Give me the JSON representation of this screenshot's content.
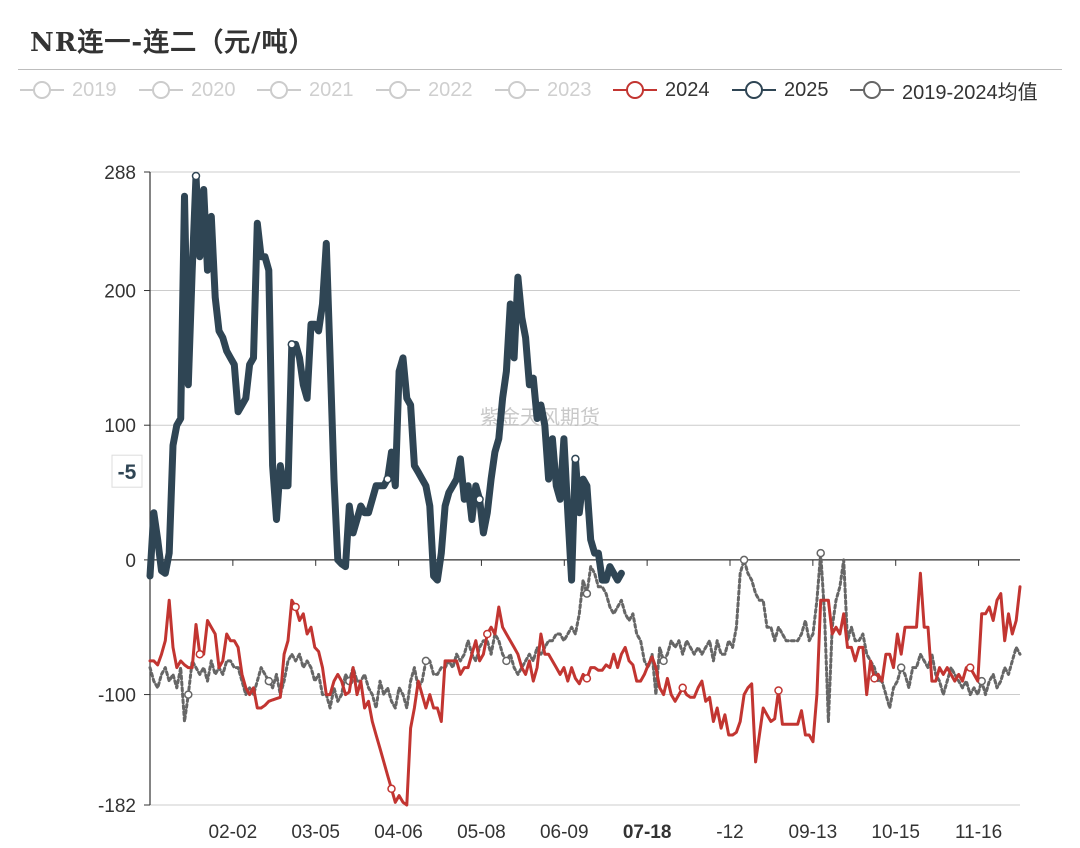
{
  "page_title": "NR连一-连二（元/吨）",
  "watermark": "紫金天风期货",
  "legend": [
    {
      "label": "2019",
      "color": "#cccccc",
      "active": false
    },
    {
      "label": "2020",
      "color": "#cccccc",
      "active": false
    },
    {
      "label": "2021",
      "color": "#cccccc",
      "active": false
    },
    {
      "label": "2022",
      "color": "#cccccc",
      "active": false
    },
    {
      "label": "2023",
      "color": "#cccccc",
      "active": false
    },
    {
      "label": "2024",
      "color": "#c23531",
      "active": true
    },
    {
      "label": "2025",
      "color": "#2f4554",
      "active": true
    },
    {
      "label": "2019-2024均值",
      "color": "#666666",
      "active": true
    }
  ],
  "chart_data": {
    "type": "line",
    "title": "NR连一-连二（元/吨）",
    "xlabel": "",
    "ylabel": "",
    "x_ticks": [
      "02-02",
      "03-05",
      "04-06",
      "05-08",
      "06-09",
      "07-18",
      "-12",
      "09-13",
      "10-15",
      "11-16"
    ],
    "x_highlight": "07-18",
    "y_ticks": [
      288,
      200,
      100,
      0,
      -100,
      -182
    ],
    "ylim": [
      -182,
      288
    ],
    "pointer_label": "-5",
    "pointer_value": 100,
    "grid": true,
    "series": [
      {
        "name": "2024",
        "color": "#c23531",
        "values": [
          -75,
          -75,
          -78,
          -70,
          -60,
          -30,
          -65,
          -80,
          -75,
          -78,
          -80,
          -80,
          -48,
          -70,
          -70,
          -45,
          -50,
          -55,
          -80,
          -75,
          -55,
          -60,
          -60,
          -65,
          -85,
          -95,
          -100,
          -95,
          -110,
          -110,
          -108,
          -105,
          -104,
          -103,
          -102,
          -70,
          -60,
          -30,
          -35,
          -45,
          -40,
          -55,
          -50,
          -65,
          -68,
          -80,
          -100,
          -100,
          -90,
          -85,
          -90,
          -100,
          -98,
          -80,
          -100,
          -90,
          -110,
          -105,
          -120,
          -130,
          -140,
          -150,
          -160,
          -170,
          -180,
          -175,
          -180,
          -182,
          -125,
          -110,
          -90,
          -100,
          -110,
          -100,
          -110,
          -110,
          -120,
          -75,
          -75,
          -75,
          -75,
          -85,
          -80,
          -80,
          -70,
          -60,
          -75,
          -70,
          -55,
          -50,
          -55,
          -35,
          -50,
          -55,
          -60,
          -65,
          -70,
          -80,
          -85,
          -75,
          -90,
          -80,
          -55,
          -70,
          -70,
          -75,
          -80,
          -85,
          -80,
          -90,
          -80,
          -88,
          -92,
          -85,
          -88,
          -80,
          -80,
          -82,
          -82,
          -78,
          -80,
          -70,
          -80,
          -70,
          -65,
          -75,
          -78,
          -90,
          -90,
          -85,
          -78,
          -72,
          -80,
          -95,
          -100,
          -88,
          -100,
          -105,
          -100,
          -95,
          -100,
          -102,
          -102,
          -95,
          -90,
          -105,
          -102,
          -120,
          -110,
          -125,
          -115,
          -130,
          -130,
          -128,
          -120,
          -100,
          -95,
          -92,
          -150,
          -130,
          -110,
          -115,
          -120,
          -118,
          -97,
          -122,
          -122,
          -122,
          -122,
          -122,
          -112,
          -130,
          -130,
          -135,
          -100,
          -30,
          -30,
          -30,
          -55,
          -50,
          -55,
          -40,
          -65,
          -65,
          -75,
          -65,
          -65,
          -100,
          -75,
          -88,
          -85,
          -90,
          -70,
          -70,
          -80,
          -55,
          -70,
          -50,
          -50,
          -50,
          -50,
          -10,
          -50,
          -50,
          -90,
          -90,
          -80,
          -85,
          -80,
          -85,
          -90,
          -85,
          -90,
          -80,
          -80,
          -85,
          -90,
          -40,
          -40,
          -35,
          -45,
          -30,
          -25,
          -60,
          -40,
          -55,
          -45,
          -20
        ]
      },
      {
        "name": "2025",
        "color": "#2f4554",
        "values": [
          -12,
          35,
          15,
          -8,
          -10,
          5,
          85,
          100,
          105,
          270,
          130,
          215,
          285,
          225,
          275,
          215,
          255,
          195,
          170,
          165,
          155,
          150,
          145,
          110,
          115,
          120,
          145,
          150,
          250,
          225,
          225,
          215,
          70,
          30,
          70,
          55,
          55,
          160,
          160,
          150,
          130,
          120,
          175,
          175,
          170,
          190,
          235,
          150,
          60,
          0,
          -3,
          -5,
          40,
          20,
          30,
          40,
          35,
          35,
          45,
          55,
          55,
          55,
          60,
          80,
          55,
          140,
          150,
          120,
          115,
          70,
          65,
          60,
          55,
          40,
          -12,
          -15,
          5,
          40,
          50,
          55,
          60,
          75,
          45,
          55,
          30,
          55,
          45,
          20,
          35,
          60,
          80,
          90,
          120,
          140,
          190,
          150,
          210,
          180,
          165,
          130,
          135,
          105,
          115,
          100,
          60,
          90,
          55,
          45,
          90,
          35,
          -15,
          75,
          35,
          60,
          55,
          15,
          5,
          5,
          -15,
          -15,
          -5,
          -10,
          -15,
          -10
        ]
      },
      {
        "name": "2019-2024均值",
        "color": "#666666",
        "values": [
          -80,
          -90,
          -95,
          -85,
          -80,
          -90,
          -85,
          -95,
          -80,
          -120,
          -100,
          -75,
          -80,
          -85,
          -80,
          -90,
          -75,
          -85,
          -80,
          -85,
          -75,
          -75,
          -80,
          -80,
          -90,
          -100,
          -95,
          -100,
          -90,
          -80,
          -85,
          -90,
          -95,
          -85,
          -100,
          -90,
          -75,
          -70,
          -75,
          -70,
          -80,
          -75,
          -80,
          -90,
          -85,
          -100,
          -100,
          -110,
          -95,
          -105,
          -100,
          -85,
          -90,
          -80,
          -90,
          -90,
          -85,
          -95,
          -100,
          -110,
          -90,
          -100,
          -95,
          -105,
          -110,
          -95,
          -100,
          -110,
          -90,
          -80,
          -95,
          -90,
          -75,
          -75,
          -85,
          -85,
          -80,
          -80,
          -75,
          -80,
          -70,
          -75,
          -70,
          -60,
          -70,
          -75,
          -65,
          -60,
          -60,
          -70,
          -55,
          -60,
          -70,
          -75,
          -70,
          -80,
          -85,
          -80,
          -75,
          -70,
          -75,
          -65,
          -70,
          -65,
          -60,
          -60,
          -55,
          -55,
          -60,
          -55,
          -50,
          -55,
          -40,
          -15,
          -25,
          -5,
          -10,
          -20,
          -20,
          -25,
          -35,
          -40,
          -35,
          -30,
          -40,
          -45,
          -40,
          -55,
          -60,
          -75,
          -80,
          -70,
          -100,
          -65,
          -75,
          -70,
          -60,
          -65,
          -60,
          -70,
          -60,
          -65,
          -70,
          -65,
          -70,
          -65,
          -60,
          -75,
          -60,
          -70,
          -70,
          -60,
          -65,
          -50,
          -10,
          0,
          -10,
          -15,
          -25,
          -30,
          -30,
          -50,
          -50,
          -60,
          -50,
          -55,
          -60,
          -60,
          -60,
          -60,
          -55,
          -45,
          -60,
          -55,
          -30,
          5,
          -40,
          -120,
          -50,
          -30,
          -20,
          0,
          -60,
          -50,
          -60,
          -60,
          -55,
          -70,
          -75,
          -80,
          -90,
          -90,
          -100,
          -110,
          -95,
          -90,
          -80,
          -85,
          -95,
          -80,
          -80,
          -70,
          -75,
          -80,
          -70,
          -85,
          -90,
          -100,
          -90,
          -80,
          -85,
          -90,
          -95,
          -90,
          -100,
          -95,
          -100,
          -90,
          -100,
          -90,
          -85,
          -95,
          -90,
          -80,
          -85,
          -75,
          -65,
          -70
        ]
      }
    ],
    "markers": [
      {
        "series": "2024",
        "points": [
          -70,
          -100,
          -85,
          -70,
          -68,
          -100,
          -155,
          -115,
          -45
        ]
      },
      {
        "series": "2025",
        "points": [
          -12,
          120,
          76,
          95,
          -15
        ]
      },
      {
        "series": "2019-2024均值",
        "points": [
          -78,
          -105,
          -110,
          -72,
          -80,
          -55,
          -85,
          -25,
          -52,
          -100,
          -93
        ]
      }
    ]
  }
}
